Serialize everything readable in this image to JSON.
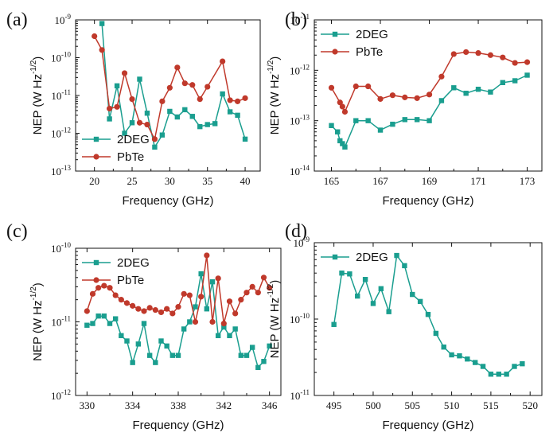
{
  "chart_data": [
    {
      "panel_label": "(a)",
      "type": "line",
      "scale": "log-y",
      "xlabel": "Frequency (GHz)",
      "ylabel": {
        "main": "NEP (W Hz",
        "sup": "-1/2",
        "end": ")"
      },
      "xlim": [
        17.5,
        42
      ],
      "xticks": [
        {
          "v": 20,
          "t": "20"
        },
        {
          "v": 25,
          "t": "25"
        },
        {
          "v": 30,
          "t": "30"
        },
        {
          "v": 35,
          "t": "35"
        },
        {
          "v": 40,
          "t": "40"
        }
      ],
      "ylim": [
        -13,
        -9
      ],
      "yticks": [
        {
          "v": -9,
          "base": "10",
          "exp": "-9"
        },
        {
          "v": -10,
          "base": "10",
          "exp": "-10"
        },
        {
          "v": -11,
          "base": "10",
          "exp": "-11"
        },
        {
          "v": -12,
          "base": "10",
          "exp": "-12"
        },
        {
          "v": -13,
          "base": "10",
          "exp": "-13"
        }
      ],
      "legend_position": "bottom-left",
      "series": [
        {
          "name": "2DEG",
          "color": "#1a9e8f",
          "marker": "square",
          "x": [
            21,
            22,
            23,
            24,
            25,
            26,
            27,
            28,
            29,
            30,
            31,
            32,
            33,
            34,
            35,
            36,
            37,
            38,
            39,
            40
          ],
          "y": [
            8e-10,
            2.4e-12,
            1.8e-11,
            1e-12,
            1.9e-12,
            2.7e-11,
            3.4e-12,
            4.3e-13,
            9e-13,
            3.8e-12,
            2.7e-12,
            4.2e-12,
            2.8e-12,
            1.5e-12,
            1.7e-12,
            1.8e-12,
            1.1e-11,
            3.7e-12,
            3e-12,
            7e-13
          ]
        },
        {
          "name": "PbTe",
          "color": "#c0392b",
          "marker": "circle",
          "x": [
            20,
            21,
            22,
            23,
            24,
            25,
            26,
            27,
            28,
            29,
            30,
            31,
            32,
            33,
            34,
            35,
            37,
            38,
            39,
            40
          ],
          "y": [
            3.7e-10,
            1.6e-10,
            4.5e-12,
            5e-12,
            3.9e-11,
            8e-12,
            1.9e-12,
            1.7e-12,
            7e-13,
            7e-12,
            1.6e-11,
            5.5e-11,
            2.1e-11,
            1.9e-11,
            8e-12,
            1.7e-11,
            8e-11,
            7.5e-12,
            7e-12,
            8.5e-12
          ]
        }
      ]
    },
    {
      "panel_label": "(b)",
      "type": "line",
      "scale": "log-y",
      "xlabel": "Frequency (GHz)",
      "ylabel": {
        "main": "NEP (W Hz",
        "sup": "-1/2",
        "end": ")"
      },
      "xlim": [
        164.3,
        173.6
      ],
      "xticks": [
        {
          "v": 165,
          "t": "165"
        },
        {
          "v": 167,
          "t": "167"
        },
        {
          "v": 169,
          "t": "169"
        },
        {
          "v": 171,
          "t": "171"
        },
        {
          "v": 173,
          "t": "173"
        }
      ],
      "ylim": [
        -14,
        -11
      ],
      "yticks": [
        {
          "v": -11,
          "base": "10",
          "exp": "-11"
        },
        {
          "v": -12,
          "base": "10",
          "exp": "-12"
        },
        {
          "v": -13,
          "base": "10",
          "exp": "-13"
        },
        {
          "v": -14,
          "base": "10",
          "exp": "-14"
        }
      ],
      "legend_position": "top-left",
      "series": [
        {
          "name": "2DEG",
          "color": "#1a9e8f",
          "marker": "square",
          "x": [
            165.0,
            165.25,
            165.35,
            165.45,
            165.55,
            166.0,
            166.5,
            167.0,
            167.5,
            168.0,
            168.5,
            169.0,
            169.5,
            170.0,
            170.5,
            171.0,
            171.5,
            172.0,
            172.5,
            173.0
          ],
          "y": [
            8e-14,
            6e-14,
            4e-14,
            3.5e-14,
            3e-14,
            1e-13,
            1e-13,
            6.5e-14,
            8.5e-14,
            1.05e-13,
            1.05e-13,
            1e-13,
            2.5e-13,
            4.5e-13,
            3.5e-13,
            4.2e-13,
            3.7e-13,
            5.7e-13,
            6.2e-13,
            8e-13
          ]
        },
        {
          "name": "PbTe",
          "color": "#c0392b",
          "marker": "circle",
          "x": [
            165.0,
            165.35,
            165.45,
            165.55,
            166.0,
            166.5,
            167.0,
            167.5,
            168.0,
            168.5,
            169.0,
            169.5,
            170.0,
            170.5,
            171.0,
            171.5,
            172.0,
            172.5,
            173.0
          ],
          "y": [
            4.5e-13,
            2.3e-13,
            1.9e-13,
            1.5e-13,
            4.8e-13,
            4.8e-13,
            2.7e-13,
            3.2e-13,
            2.9e-13,
            2.8e-13,
            3.3e-13,
            7.5e-13,
            2.1e-12,
            2.3e-12,
            2.2e-12,
            2e-12,
            1.8e-12,
            1.4e-12,
            1.45e-12
          ]
        }
      ]
    },
    {
      "panel_label": "(c)",
      "type": "line",
      "scale": "log-y",
      "xlabel": "Frequency (GHz)",
      "ylabel": {
        "main": "NEP (W Hz",
        "sup": "-1/2",
        "end": ")"
      },
      "xlim": [
        329,
        347
      ],
      "xticks": [
        {
          "v": 330,
          "t": "330"
        },
        {
          "v": 334,
          "t": "334"
        },
        {
          "v": 338,
          "t": "338"
        },
        {
          "v": 342,
          "t": "342"
        },
        {
          "v": 346,
          "t": "346"
        }
      ],
      "ylim": [
        -12,
        -10
      ],
      "yticks": [
        {
          "v": -10,
          "base": "10",
          "exp": "-10"
        },
        {
          "v": -11,
          "base": "10",
          "exp": "-11"
        },
        {
          "v": -12,
          "base": "10",
          "exp": "-12"
        }
      ],
      "legend_position": "top-left",
      "series": [
        {
          "name": "2DEG",
          "color": "#1a9e8f",
          "marker": "square",
          "x": [
            330,
            330.5,
            331,
            331.5,
            332,
            332.5,
            333,
            333.5,
            334,
            334.5,
            335,
            335.5,
            336,
            336.5,
            337,
            337.5,
            338,
            338.5,
            339,
            339.5,
            340,
            340.5,
            341,
            341.5,
            342,
            342.5,
            343,
            343.5,
            344,
            344.5,
            345,
            345.5,
            346
          ],
          "y": [
            9e-12,
            9.5e-12,
            1.2e-11,
            1.2e-11,
            9.5e-12,
            1.1e-11,
            6.5e-12,
            5.5e-12,
            2.8e-12,
            5e-12,
            9.5e-12,
            3.5e-12,
            2.8e-12,
            5.5e-12,
            4.7e-12,
            3.5e-12,
            3.5e-12,
            8e-12,
            1e-11,
            1.6e-11,
            4.5e-11,
            1.5e-11,
            3.5e-11,
            6.5e-12,
            8.5e-12,
            6.5e-12,
            8e-12,
            3.5e-12,
            3.5e-12,
            4.5e-12,
            2.4e-12,
            2.9e-12,
            4.7e-12
          ]
        },
        {
          "name": "PbTe",
          "color": "#c0392b",
          "marker": "circle",
          "x": [
            330,
            330.5,
            331,
            331.5,
            332,
            332.5,
            333,
            333.5,
            334,
            334.5,
            335,
            335.5,
            336,
            336.5,
            337,
            337.5,
            338,
            338.5,
            339,
            339.5,
            340,
            340.5,
            341,
            341.5,
            342,
            342.5,
            343,
            343.5,
            344,
            344.5,
            345,
            345.5,
            346
          ],
          "y": [
            1.4e-11,
            2.4e-11,
            2.9e-11,
            3.1e-11,
            2.9e-11,
            2.3e-11,
            2e-11,
            1.8e-11,
            1.65e-11,
            1.5e-11,
            1.4e-11,
            1.55e-11,
            1.45e-11,
            1.35e-11,
            1.5e-11,
            1.3e-11,
            1.6e-11,
            2.4e-11,
            2.3e-11,
            1e-11,
            2.2e-11,
            8e-11,
            1e-11,
            3.9e-11,
            9.5e-12,
            1.9e-11,
            1.3e-11,
            2e-11,
            2.5e-11,
            3e-11,
            2.5e-11,
            4e-11,
            2.9e-11
          ]
        }
      ]
    },
    {
      "panel_label": "(d)",
      "type": "line",
      "scale": "log-y",
      "xlabel": "Frequency (GHz)",
      "ylabel": {
        "main": "NEP (W Hz",
        "sup": "-1/2",
        "end": ")"
      },
      "xlim": [
        492.5,
        521.5
      ],
      "xticks": [
        {
          "v": 495,
          "t": "495"
        },
        {
          "v": 500,
          "t": "500"
        },
        {
          "v": 505,
          "t": "505"
        },
        {
          "v": 510,
          "t": "510"
        },
        {
          "v": 515,
          "t": "515"
        },
        {
          "v": 520,
          "t": "520"
        }
      ],
      "ylim": [
        -11,
        -9
      ],
      "yticks": [
        {
          "v": -9,
          "base": "10",
          "exp": "-9"
        },
        {
          "v": -10,
          "base": "10",
          "exp": "-10"
        },
        {
          "v": -11,
          "base": "10",
          "exp": "-11"
        }
      ],
      "legend_position": "top-left",
      "series": [
        {
          "name": "2DEG",
          "color": "#1a9e8f",
          "marker": "square",
          "x": [
            495,
            496,
            497,
            498,
            499,
            500,
            501,
            502,
            503,
            504,
            505,
            506,
            507,
            508,
            509,
            510,
            511,
            512,
            513,
            514,
            515,
            516,
            517,
            518,
            519
          ],
          "y": [
            8.5e-11,
            4e-10,
            3.9e-10,
            2e-10,
            3.3e-10,
            1.6e-10,
            2.5e-10,
            1.25e-10,
            6.8e-10,
            5e-10,
            2.1e-10,
            1.7e-10,
            1.15e-10,
            6.5e-11,
            4.3e-11,
            3.4e-11,
            3.3e-11,
            3e-11,
            2.7e-11,
            2.4e-11,
            1.9e-11,
            1.9e-11,
            1.9e-11,
            2.4e-11,
            2.6e-11
          ]
        }
      ]
    }
  ]
}
